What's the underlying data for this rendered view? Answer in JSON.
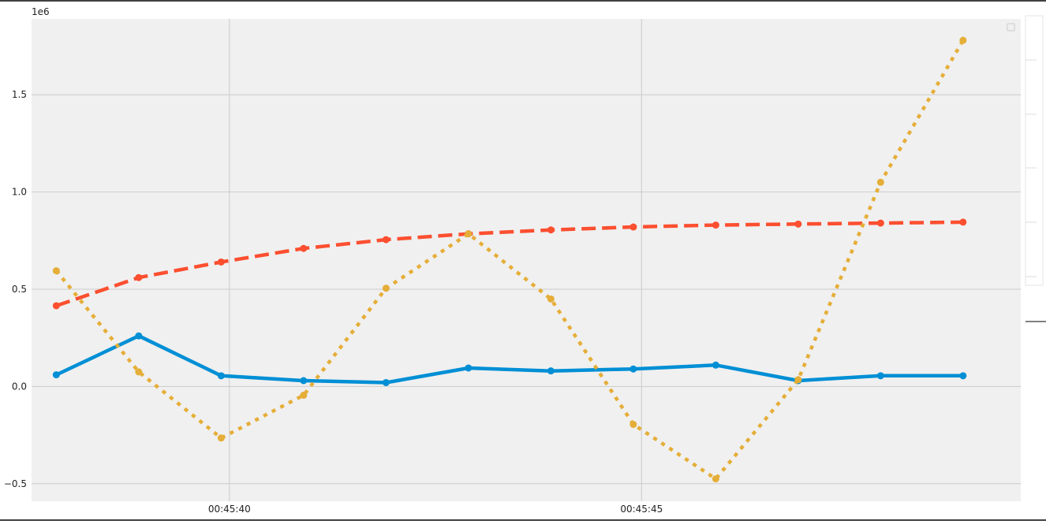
{
  "chart_data": {
    "type": "line",
    "title": "",
    "xlabel": "",
    "ylabel": "",
    "y_offset_label": "1e6",
    "x": [
      "00:45:37.9",
      "00:45:38.9",
      "00:45:39.9",
      "00:45:40.9",
      "00:45:41.9",
      "00:45:42.9",
      "00:45:43.9",
      "00:45:44.9",
      "00:45:45.9",
      "00:45:46.9",
      "00:45:47.9",
      "00:45:48.9"
    ],
    "xlim": [
      "00:45:37.6",
      "00:45:49.6"
    ],
    "ylim": [
      -0.59,
      1.89
    ],
    "x_ticks": [
      {
        "value": "00:45:40",
        "label": "00:45:40"
      },
      {
        "value": "00:45:45",
        "label": "00:45:45"
      }
    ],
    "y_ticks": [
      {
        "value": -0.5,
        "label": "−0.5"
      },
      {
        "value": 0.0,
        "label": "0.0"
      },
      {
        "value": 0.5,
        "label": "0.5"
      },
      {
        "value": 1.0,
        "label": "1.0"
      },
      {
        "value": 1.5,
        "label": "1.5"
      }
    ],
    "grid": true,
    "legend": "top-right",
    "series": [
      {
        "color": "#008fd5",
        "style": "solid",
        "values": [
          0.06,
          0.26,
          0.055,
          0.03,
          0.02,
          0.095,
          0.08,
          0.09,
          0.11,
          0.03,
          0.055,
          0.055
        ]
      },
      {
        "color": "#fc4f30",
        "style": "dashed",
        "values": [
          0.415,
          0.56,
          0.64,
          0.71,
          0.755,
          0.785,
          0.805,
          0.82,
          0.83,
          0.835,
          0.84,
          0.845
        ]
      },
      {
        "color": "#e5ae38",
        "style": "dotted",
        "values": [
          0.595,
          0.075,
          -0.265,
          -0.045,
          0.505,
          0.785,
          0.45,
          -0.195,
          -0.475,
          0.035,
          1.05,
          1.78
        ]
      }
    ]
  }
}
